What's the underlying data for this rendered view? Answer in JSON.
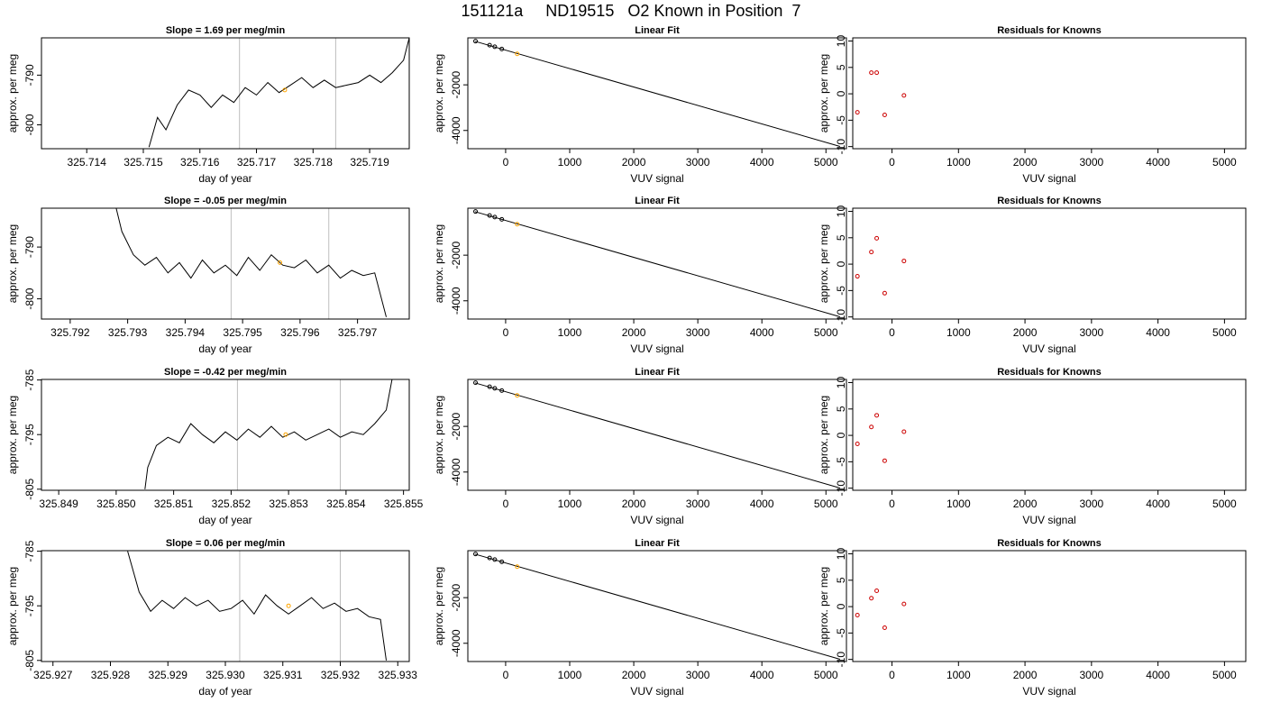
{
  "page": {
    "title": "151121a     ND19515   O2 Known in Position  7"
  },
  "chart_data": [
    {
      "type": "line",
      "title": "Slope =  1.69  per meg/min",
      "xlabel": "day of year",
      "ylabel": "approx. per meg",
      "xlim": [
        325.7132,
        325.7197
      ],
      "ylim": [
        -804.8,
        -782.5
      ],
      "xticks": [
        "325.714",
        "325.715",
        "325.716",
        "325.717",
        "325.718",
        "325.719"
      ],
      "yticks": [
        "-790",
        "-800"
      ],
      "vlines": [
        325.7167,
        325.7184
      ],
      "series": [
        {
          "x": [
            325.7151,
            325.71525,
            325.7154,
            325.7156,
            325.7158,
            325.716,
            325.7162,
            325.7164,
            325.7166,
            325.7168,
            325.717,
            325.7172,
            325.7174,
            325.7176,
            325.7178,
            325.718,
            325.7182,
            325.7184,
            325.7186,
            325.7188,
            325.719,
            325.7192,
            325.7194,
            325.7196,
            325.7197
          ],
          "y": [
            -804.5,
            -798.5,
            -801,
            -796,
            -793,
            -794,
            -796.5,
            -794,
            -795.5,
            -792.5,
            -794,
            -791.5,
            -793.5,
            -792,
            -790.5,
            -792.5,
            -791,
            -792.5,
            -792,
            -791.5,
            -790,
            -791.5,
            -789.5,
            -787,
            -782.5
          ]
        }
      ],
      "marker": {
        "x": 325.7175,
        "y": -793
      }
    },
    {
      "type": "line",
      "title": "Slope =  -0.05  per meg/min",
      "xlabel": "day of year",
      "ylabel": "approx. per meg",
      "xlim": [
        325.7915,
        325.7979
      ],
      "ylim": [
        -803.9,
        -782.5
      ],
      "xticks": [
        "325.792",
        "325.793",
        "325.794",
        "325.795",
        "325.796",
        "325.797"
      ],
      "yticks": [
        "-790",
        "-800"
      ],
      "vlines": [
        325.7948,
        325.7965
      ],
      "series": [
        {
          "x": [
            325.7928,
            325.7929,
            325.7931,
            325.7933,
            325.7935,
            325.7937,
            325.7939,
            325.7941,
            325.7943,
            325.7945,
            325.7947,
            325.7949,
            325.7951,
            325.7953,
            325.7955,
            325.7957,
            325.7959,
            325.7961,
            325.7963,
            325.7965,
            325.7967,
            325.7969,
            325.7971,
            325.7973,
            325.7975
          ],
          "y": [
            -782.5,
            -787,
            -791.5,
            -793.5,
            -792,
            -795,
            -793,
            -796,
            -792.5,
            -795,
            -793.5,
            -795.5,
            -792,
            -794.5,
            -791.5,
            -793.5,
            -794,
            -792.5,
            -795,
            -793.5,
            -796,
            -794.5,
            -795.5,
            -795,
            -803.5
          ]
        }
      ],
      "marker": {
        "x": 325.79565,
        "y": -793
      }
    },
    {
      "type": "line",
      "title": "Slope =  -0.42  per meg/min",
      "xlabel": "day of year",
      "ylabel": "approx. per meg",
      "xlim": [
        325.8487,
        325.8551
      ],
      "ylim": [
        -805.2,
        -784.9
      ],
      "xticks": [
        "325.849",
        "325.850",
        "325.851",
        "325.852",
        "325.853",
        "325.854",
        "325.855"
      ],
      "yticks": [
        "-785",
        "-795",
        "-805"
      ],
      "vlines": [
        325.85211,
        325.8539
      ],
      "series": [
        {
          "x": [
            325.8505,
            325.85055,
            325.8507,
            325.8509,
            325.8511,
            325.8513,
            325.8515,
            325.8517,
            325.8519,
            325.8521,
            325.8523,
            325.8525,
            325.8527,
            325.8529,
            325.8531,
            325.8533,
            325.8535,
            325.8537,
            325.8539,
            325.8541,
            325.8543,
            325.8545,
            325.8547,
            325.8548
          ],
          "y": [
            -805,
            -801,
            -797,
            -795.5,
            -796.5,
            -793,
            -795,
            -796.5,
            -794.5,
            -796,
            -794,
            -795.5,
            -793.5,
            -795.5,
            -794.5,
            -796,
            -795,
            -794,
            -795.5,
            -794.5,
            -795,
            -793,
            -790.5,
            -784.9
          ]
        }
      ],
      "marker": {
        "x": 325.85295,
        "y": -795
      }
    },
    {
      "type": "line",
      "title": "Slope =  0.06  per meg/min",
      "xlabel": "day of year",
      "ylabel": "approx. per meg",
      "xlim": [
        325.9268,
        325.9332
      ],
      "ylim": [
        -805.2,
        -784.9
      ],
      "xticks": [
        "325.927",
        "325.928",
        "325.929",
        "325.930",
        "325.931",
        "325.932",
        "325.933"
      ],
      "yticks": [
        "-785",
        "-795",
        "-805"
      ],
      "vlines": [
        325.93025,
        325.932
      ],
      "series": [
        {
          "x": [
            325.9283,
            325.9285,
            325.9287,
            325.9289,
            325.9291,
            325.9293,
            325.9295,
            325.9297,
            325.9299,
            325.9301,
            325.9303,
            325.9305,
            325.9307,
            325.9309,
            325.9311,
            325.9313,
            325.9315,
            325.9317,
            325.9319,
            325.9321,
            325.9323,
            325.9325,
            325.9327,
            325.9328
          ],
          "y": [
            -785,
            -792.5,
            -796,
            -794,
            -795.5,
            -793.5,
            -795,
            -794,
            -796,
            -795.5,
            -794,
            -796.5,
            -793,
            -795,
            -796.5,
            -795,
            -793.5,
            -795.5,
            -794.5,
            -796,
            -795.5,
            -797,
            -797.5,
            -805
          ]
        }
      ],
      "marker": {
        "x": 325.9311,
        "y": -795
      }
    },
    {
      "type": "line",
      "title": "Linear Fit",
      "xlabel": "VUV signal",
      "ylabel": "approx. per meg",
      "xlim": [
        -590,
        5320
      ],
      "ylim": [
        -4800,
        60
      ],
      "xticks": [
        0,
        1000,
        2000,
        3000,
        4000,
        5000
      ],
      "yticks": [
        -2000,
        -4000
      ],
      "line": {
        "x": [
          -480,
          5220
        ],
        "y": [
          -90,
          -4700
        ]
      },
      "points": {
        "x": [
          -470,
          -250,
          -170,
          -60
        ],
        "y": [
          -85,
          -260,
          -330,
          -430
        ]
      },
      "marker": {
        "x": 180,
        "y": -640
      }
    },
    {
      "type": "line",
      "title": "Linear Fit",
      "xlabel": "VUV signal",
      "ylabel": "approx. per meg",
      "xlim": [
        -590,
        5320
      ],
      "ylim": [
        -4800,
        60
      ],
      "xticks": [
        0,
        1000,
        2000,
        3000,
        4000,
        5000
      ],
      "yticks": [
        -2000,
        -4000
      ],
      "line": {
        "x": [
          -480,
          5220
        ],
        "y": [
          -90,
          -4700
        ]
      },
      "points": {
        "x": [
          -470,
          -250,
          -170,
          -60
        ],
        "y": [
          -85,
          -260,
          -330,
          -430
        ]
      },
      "marker": {
        "x": 180,
        "y": -640
      }
    },
    {
      "type": "line",
      "title": "Linear Fit",
      "xlabel": "VUV signal",
      "ylabel": "approx. per meg",
      "xlim": [
        -590,
        5320
      ],
      "ylim": [
        -4800,
        60
      ],
      "xticks": [
        0,
        1000,
        2000,
        3000,
        4000,
        5000
      ],
      "yticks": [
        -2000,
        -4000
      ],
      "line": {
        "x": [
          -480,
          5220
        ],
        "y": [
          -90,
          -4700
        ]
      },
      "points": {
        "x": [
          -470,
          -250,
          -170,
          -60
        ],
        "y": [
          -85,
          -260,
          -330,
          -430
        ]
      },
      "marker": {
        "x": 180,
        "y": -640
      }
    },
    {
      "type": "line",
      "title": "Linear Fit",
      "xlabel": "VUV signal",
      "ylabel": "approx. per meg",
      "xlim": [
        -590,
        5320
      ],
      "ylim": [
        -4800,
        60
      ],
      "xticks": [
        0,
        1000,
        2000,
        3000,
        4000,
        5000
      ],
      "yticks": [
        -2000,
        -4000
      ],
      "line": {
        "x": [
          -480,
          5220
        ],
        "y": [
          -90,
          -4700
        ]
      },
      "points": {
        "x": [
          -470,
          -250,
          -170,
          -60
        ],
        "y": [
          -85,
          -260,
          -330,
          -430
        ]
      },
      "marker": {
        "x": 180,
        "y": -640
      }
    },
    {
      "type": "scatter",
      "title": "Residuals for Knowns",
      "xlabel": "VUV signal",
      "ylabel": "approx. per meg",
      "xlim": [
        -590,
        5320
      ],
      "ylim": [
        -10.4,
        10.6
      ],
      "xticks": [
        0,
        1000,
        2000,
        3000,
        4000,
        5000
      ],
      "yticks": [
        10,
        5,
        0,
        -5,
        -10
      ],
      "points": {
        "x": [
          -520,
          -310,
          -230,
          -110,
          180
        ],
        "y": [
          -3.5,
          4,
          4,
          -4,
          -0.3
        ]
      }
    },
    {
      "type": "scatter",
      "title": "Residuals for Knowns",
      "xlabel": "VUV signal",
      "ylabel": "approx. per meg",
      "xlim": [
        -590,
        5320
      ],
      "ylim": [
        -10.4,
        10.6
      ],
      "xticks": [
        0,
        1000,
        2000,
        3000,
        4000,
        5000
      ],
      "yticks": [
        10,
        5,
        0,
        -5,
        -10
      ],
      "points": {
        "x": [
          -520,
          -310,
          -230,
          -110,
          180
        ],
        "y": [
          -2.3,
          2.3,
          4.9,
          -5.5,
          0.6
        ]
      }
    },
    {
      "type": "scatter",
      "title": "Residuals for Knowns",
      "xlabel": "VUV signal",
      "ylabel": "approx. per meg",
      "xlim": [
        -590,
        5320
      ],
      "ylim": [
        -10.4,
        10.6
      ],
      "xticks": [
        0,
        1000,
        2000,
        3000,
        4000,
        5000
      ],
      "yticks": [
        10,
        5,
        0,
        -5,
        -10
      ],
      "points": {
        "x": [
          -520,
          -310,
          -230,
          -110,
          180
        ],
        "y": [
          -1.6,
          1.6,
          3.8,
          -4.8,
          0.7
        ]
      }
    },
    {
      "type": "scatter",
      "title": "Residuals for Knowns",
      "xlabel": "VUV signal",
      "ylabel": "approx. per meg",
      "xlim": [
        -590,
        5320
      ],
      "ylim": [
        -10.4,
        10.6
      ],
      "xticks": [
        0,
        1000,
        2000,
        3000,
        4000,
        5000
      ],
      "yticks": [
        10,
        5,
        0,
        -5,
        -10
      ],
      "points": {
        "x": [
          -520,
          -310,
          -230,
          -110,
          180
        ],
        "y": [
          -1.6,
          1.6,
          3.0,
          -4.0,
          0.5
        ]
      }
    }
  ],
  "colors": {
    "line": "#000000",
    "guide": "#bebebe",
    "marker": "#ffa500",
    "residual": "#cc0000"
  }
}
